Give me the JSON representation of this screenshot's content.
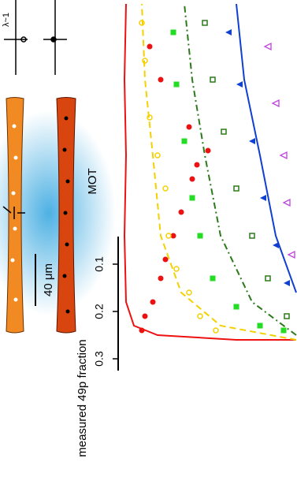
{
  "diagram": {
    "partial_label": "λ~1",
    "scale_label": "40 μm",
    "mot_label": "MOT"
  },
  "chart_data": {
    "type": "scatter",
    "y_label": "measured 49p fraction",
    "ylim": [
      -0.45,
      0.55
    ],
    "yticks": [
      0.1,
      0.2,
      0.3
    ],
    "series": [
      {
        "color": "#ee1111",
        "marker": "line",
        "x": [
          113,
          75,
          25,
          10,
          5,
          4,
          5,
          4,
          5
        ],
        "values": [
          0.26,
          0.26,
          0.25,
          0.23,
          0.18,
          0.04,
          -0.13,
          -0.29,
          -0.45
        ]
      },
      {
        "color": "#f5d000",
        "marker": "dashed",
        "x": [
          113,
          65,
          40,
          27,
          22,
          17,
          15
        ],
        "values": [
          0.26,
          0.23,
          0.16,
          0.04,
          -0.13,
          -0.29,
          -0.45
        ]
      },
      {
        "color": "#2a7a1a",
        "marker": "dashdot",
        "x": [
          113,
          85,
          65,
          55,
          47,
          42
        ],
        "values": [
          0.25,
          0.18,
          0.04,
          -0.13,
          -0.29,
          -0.45
        ]
      },
      {
        "color": "#1040d0",
        "marker": "line",
        "x": [
          113,
          100,
          90,
          80,
          75
        ],
        "values": [
          0.16,
          0.04,
          -0.13,
          -0.29,
          -0.45
        ]
      },
      {
        "color": "#ee1111",
        "marker": "filled-circle",
        "x": [
          57,
          50,
          47,
          40,
          35,
          30,
          27,
          22,
          17,
          15,
          27,
          20,
          45
        ],
        "values": [
          -0.14,
          -0.11,
          -0.08,
          -0.01,
          0.04,
          0.09,
          0.13,
          0.18,
          0.21,
          0.24,
          -0.29,
          -0.36,
          -0.19
        ]
      },
      {
        "color": "#f5d000",
        "marker": "open-circle",
        "x": [
          15,
          17,
          20,
          25,
          30,
          32,
          37,
          45,
          52,
          62
        ],
        "values": [
          -0.41,
          -0.33,
          -0.21,
          -0.13,
          -0.06,
          0.04,
          0.11,
          0.16,
          0.21,
          0.24
        ]
      },
      {
        "color": "#22dd22",
        "marker": "filled-square",
        "x": [
          35,
          37,
          42,
          47,
          52,
          60,
          75,
          90,
          105
        ],
        "values": [
          -0.39,
          -0.28,
          -0.16,
          -0.04,
          0.04,
          0.13,
          0.19,
          0.23,
          0.24
        ]
      },
      {
        "color": "#2a7a1a",
        "marker": "open-square",
        "x": [
          55,
          60,
          67,
          75,
          85,
          95,
          107
        ],
        "values": [
          -0.41,
          -0.29,
          -0.18,
          -0.06,
          0.04,
          0.13,
          0.21
        ]
      },
      {
        "color": "#1040d0",
        "marker": "filled-triangle",
        "x": [
          70,
          77,
          85,
          92,
          100,
          107
        ],
        "values": [
          -0.39,
          -0.28,
          -0.16,
          -0.04,
          0.06,
          0.14
        ]
      },
      {
        "color": "#c040e0",
        "marker": "open-triangle",
        "x": [
          95,
          100,
          105,
          107,
          110
        ],
        "values": [
          -0.36,
          -0.24,
          -0.13,
          -0.03,
          0.08
        ]
      }
    ]
  }
}
